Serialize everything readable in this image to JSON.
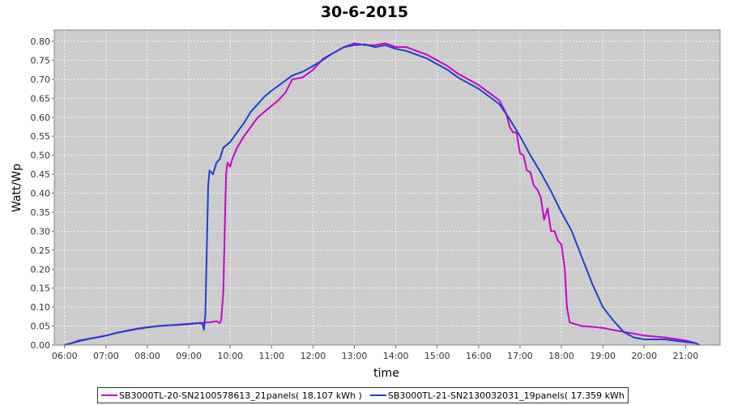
{
  "chart_data": {
    "type": "line",
    "title": "30-6-2015",
    "xlabel": "time",
    "ylabel": "Watt/Wp",
    "x_ticks": [
      "06:00",
      "07:00",
      "08:00",
      "09:00",
      "10:00",
      "11:00",
      "12:00",
      "13:00",
      "14:00",
      "15:00",
      "16:00",
      "17:00",
      "18:00",
      "19:00",
      "20:00",
      "21:00"
    ],
    "y_ticks": [
      "0.00",
      "0.05",
      "0.10",
      "0.15",
      "0.20",
      "0.25",
      "0.30",
      "0.35",
      "0.40",
      "0.45",
      "0.50",
      "0.55",
      "0.60",
      "0.65",
      "0.70",
      "0.75",
      "0.80"
    ],
    "xlim": [
      "05:45",
      "21:50"
    ],
    "ylim": [
      0,
      0.83
    ],
    "grid": true,
    "legend_position": "bottom",
    "series": [
      {
        "name": "SB3000TL-20-SN2100578613_21panels( 18.107 kWh )",
        "color": "#cc00cc",
        "points": [
          [
            "06:00",
            0.0
          ],
          [
            "06:10",
            0.005
          ],
          [
            "06:20",
            0.012
          ],
          [
            "06:30",
            0.015
          ],
          [
            "06:40",
            0.018
          ],
          [
            "06:50",
            0.022
          ],
          [
            "07:00",
            0.025
          ],
          [
            "07:15",
            0.032
          ],
          [
            "07:30",
            0.037
          ],
          [
            "07:45",
            0.042
          ],
          [
            "08:00",
            0.046
          ],
          [
            "08:15",
            0.05
          ],
          [
            "08:30",
            0.052
          ],
          [
            "08:45",
            0.053
          ],
          [
            "09:00",
            0.055
          ],
          [
            "09:15",
            0.058
          ],
          [
            "09:30",
            0.06
          ],
          [
            "09:40",
            0.063
          ],
          [
            "09:45",
            0.058
          ],
          [
            "09:47",
            0.065
          ],
          [
            "09:50",
            0.14
          ],
          [
            "09:52",
            0.3
          ],
          [
            "09:54",
            0.45
          ],
          [
            "09:56",
            0.48
          ],
          [
            "10:00",
            0.47
          ],
          [
            "10:03",
            0.49
          ],
          [
            "10:10",
            0.52
          ],
          [
            "10:20",
            0.55
          ],
          [
            "10:30",
            0.575
          ],
          [
            "10:40",
            0.6
          ],
          [
            "10:50",
            0.615
          ],
          [
            "11:00",
            0.63
          ],
          [
            "11:10",
            0.645
          ],
          [
            "11:20",
            0.665
          ],
          [
            "11:30",
            0.7
          ],
          [
            "11:45",
            0.705
          ],
          [
            "12:00",
            0.725
          ],
          [
            "12:15",
            0.755
          ],
          [
            "12:30",
            0.77
          ],
          [
            "12:45",
            0.785
          ],
          [
            "13:00",
            0.795
          ],
          [
            "13:15",
            0.79
          ],
          [
            "13:30",
            0.79
          ],
          [
            "13:45",
            0.795
          ],
          [
            "14:00",
            0.785
          ],
          [
            "14:15",
            0.785
          ],
          [
            "14:30",
            0.775
          ],
          [
            "14:45",
            0.765
          ],
          [
            "15:00",
            0.75
          ],
          [
            "15:15",
            0.735
          ],
          [
            "15:30",
            0.715
          ],
          [
            "15:45",
            0.7
          ],
          [
            "16:00",
            0.685
          ],
          [
            "16:15",
            0.665
          ],
          [
            "16:30",
            0.645
          ],
          [
            "16:40",
            0.61
          ],
          [
            "16:45",
            0.575
          ],
          [
            "16:50",
            0.56
          ],
          [
            "16:55",
            0.56
          ],
          [
            "17:00",
            0.505
          ],
          [
            "17:05",
            0.5
          ],
          [
            "17:10",
            0.46
          ],
          [
            "17:15",
            0.455
          ],
          [
            "17:20",
            0.42
          ],
          [
            "17:25",
            0.41
          ],
          [
            "17:30",
            0.39
          ],
          [
            "17:35",
            0.33
          ],
          [
            "17:40",
            0.36
          ],
          [
            "17:45",
            0.3
          ],
          [
            "17:50",
            0.3
          ],
          [
            "17:55",
            0.275
          ],
          [
            "18:00",
            0.265
          ],
          [
            "18:05",
            0.2
          ],
          [
            "18:08",
            0.1
          ],
          [
            "18:12",
            0.06
          ],
          [
            "18:20",
            0.055
          ],
          [
            "18:30",
            0.05
          ],
          [
            "18:45",
            0.048
          ],
          [
            "19:00",
            0.045
          ],
          [
            "19:15",
            0.04
          ],
          [
            "19:30",
            0.035
          ],
          [
            "19:45",
            0.03
          ],
          [
            "20:00",
            0.025
          ],
          [
            "20:30",
            0.02
          ],
          [
            "21:00",
            0.012
          ],
          [
            "21:15",
            0.005
          ],
          [
            "21:20",
            0.0
          ]
        ]
      },
      {
        "name": "SB3000TL-21-SN2130032031_19panels( 17.359 kWh )",
        "color": "#1f3fcf",
        "points": [
          [
            "06:00",
            0.0
          ],
          [
            "06:10",
            0.005
          ],
          [
            "06:20",
            0.01
          ],
          [
            "06:30",
            0.014
          ],
          [
            "06:40",
            0.018
          ],
          [
            "06:50",
            0.021
          ],
          [
            "07:00",
            0.025
          ],
          [
            "07:15",
            0.032
          ],
          [
            "07:30",
            0.038
          ],
          [
            "07:45",
            0.043
          ],
          [
            "08:00",
            0.047
          ],
          [
            "08:15",
            0.05
          ],
          [
            "08:30",
            0.052
          ],
          [
            "08:45",
            0.054
          ],
          [
            "09:00",
            0.056
          ],
          [
            "09:15",
            0.058
          ],
          [
            "09:20",
            0.055
          ],
          [
            "09:22",
            0.04
          ],
          [
            "09:24",
            0.08
          ],
          [
            "09:26",
            0.25
          ],
          [
            "09:28",
            0.42
          ],
          [
            "09:30",
            0.46
          ],
          [
            "09:35",
            0.45
          ],
          [
            "09:40",
            0.48
          ],
          [
            "09:45",
            0.49
          ],
          [
            "09:50",
            0.52
          ],
          [
            "10:00",
            0.535
          ],
          [
            "10:10",
            0.56
          ],
          [
            "10:20",
            0.585
          ],
          [
            "10:30",
            0.615
          ],
          [
            "10:40",
            0.635
          ],
          [
            "10:50",
            0.655
          ],
          [
            "11:00",
            0.67
          ],
          [
            "11:15",
            0.69
          ],
          [
            "11:30",
            0.71
          ],
          [
            "11:45",
            0.72
          ],
          [
            "12:00",
            0.735
          ],
          [
            "12:15",
            0.752
          ],
          [
            "12:30",
            0.77
          ],
          [
            "12:45",
            0.785
          ],
          [
            "13:00",
            0.79
          ],
          [
            "13:15",
            0.792
          ],
          [
            "13:30",
            0.785
          ],
          [
            "13:45",
            0.79
          ],
          [
            "14:00",
            0.78
          ],
          [
            "14:15",
            0.775
          ],
          [
            "14:30",
            0.765
          ],
          [
            "14:45",
            0.755
          ],
          [
            "15:00",
            0.74
          ],
          [
            "15:15",
            0.725
          ],
          [
            "15:30",
            0.705
          ],
          [
            "15:45",
            0.69
          ],
          [
            "16:00",
            0.675
          ],
          [
            "16:15",
            0.655
          ],
          [
            "16:30",
            0.635
          ],
          [
            "16:45",
            0.595
          ],
          [
            "17:00",
            0.55
          ],
          [
            "17:15",
            0.5
          ],
          [
            "17:30",
            0.455
          ],
          [
            "17:45",
            0.405
          ],
          [
            "18:00",
            0.35
          ],
          [
            "18:15",
            0.3
          ],
          [
            "18:30",
            0.23
          ],
          [
            "18:45",
            0.16
          ],
          [
            "19:00",
            0.1
          ],
          [
            "19:15",
            0.065
          ],
          [
            "19:30",
            0.035
          ],
          [
            "19:45",
            0.02
          ],
          [
            "20:00",
            0.015
          ],
          [
            "20:30",
            0.015
          ],
          [
            "21:00",
            0.008
          ],
          [
            "21:15",
            0.005
          ],
          [
            "21:20",
            0.0
          ]
        ]
      }
    ]
  }
}
